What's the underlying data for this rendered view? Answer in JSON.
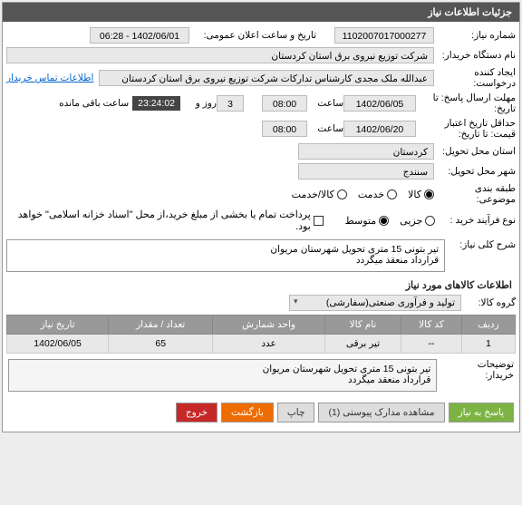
{
  "header": {
    "title": "جزئیات اطلاعات نیاز"
  },
  "fields": {
    "need_number": {
      "label": "شماره نیاز:",
      "value": "1102007017000277"
    },
    "announce": {
      "label": "تاریخ و ساعت اعلان عمومی:",
      "value": "1402/06/01 - 06:28"
    },
    "buyer": {
      "label": "نام دستگاه خریدار:",
      "value": "شرکت توزیع نیروی برق استان کردستان"
    },
    "requester": {
      "label": "ایجاد کننده درخواست:",
      "value": "عبدالله ملک مجدی کارشناس تدارکات شرکت توزیع نیروی برق استان کردستان",
      "link": "اطلاعات تماس خریدار"
    },
    "deadline": {
      "label": "مهلت ارسال پاسخ: تا تاریخ:",
      "date": "1402/06/05",
      "time_label": "ساعت",
      "time": "08:00",
      "days_label": "روز و",
      "days": "3",
      "countdown": "23:24:02",
      "remain": "ساعت باقی مانده"
    },
    "validity": {
      "label": "حداقل تاریخ اعتبار قیمت: تا تاریخ:",
      "date": "1402/06/20",
      "time_label": "ساعت",
      "time": "08:00"
    },
    "province": {
      "label": "استان محل تحویل:",
      "value": "کردستان"
    },
    "city": {
      "label": "شهر محل تحویل:",
      "value": "سنندج"
    },
    "category": {
      "label": "طبقه بندی موضوعی:",
      "options": [
        "کالا",
        "خدمت",
        "کالا/خدمت"
      ],
      "selected": 0
    },
    "purchase_type": {
      "label": "نوع فرآیند خرید :",
      "options": [
        "جزیی",
        "متوسط"
      ],
      "selected": 1,
      "checkbox_label": "پرداخت تمام یا بخشی از مبلغ خرید،از محل \"اسناد خزانه اسلامی\" خواهد بود."
    },
    "need_desc": {
      "label": "شرح کلی نیاز:",
      "text": "تیر بتونی 15 متری تحویل شهرستان مریوان\nقرارداد منعقد میگردد"
    },
    "goods_section": "اطلاعات کالاهای مورد نیاز",
    "goods_group": {
      "label": "گروه کالا:",
      "value": "تولید و فرآوری صنعتی(سفارشی)"
    },
    "buyer_desc": {
      "label": "توضیحات خریدار:",
      "text": "تیر بتونی 15 متری تحویل شهرستان مریوان\nقرارداد منعقد میگردد"
    }
  },
  "table": {
    "headers": [
      "ردیف",
      "کد کالا",
      "نام کالا",
      "واحد شمارش",
      "تعداد / مقدار",
      "تاریخ نیاز"
    ],
    "rows": [
      [
        "1",
        "--",
        "تیر برقی",
        "عدد",
        "65",
        "1402/06/05"
      ]
    ]
  },
  "buttons": {
    "respond": "پاسخ به نیاز",
    "attachments": "مشاهده مدارک پیوستی  (1)",
    "print": "چاپ",
    "back": "بازگشت",
    "exit": "خروج"
  }
}
